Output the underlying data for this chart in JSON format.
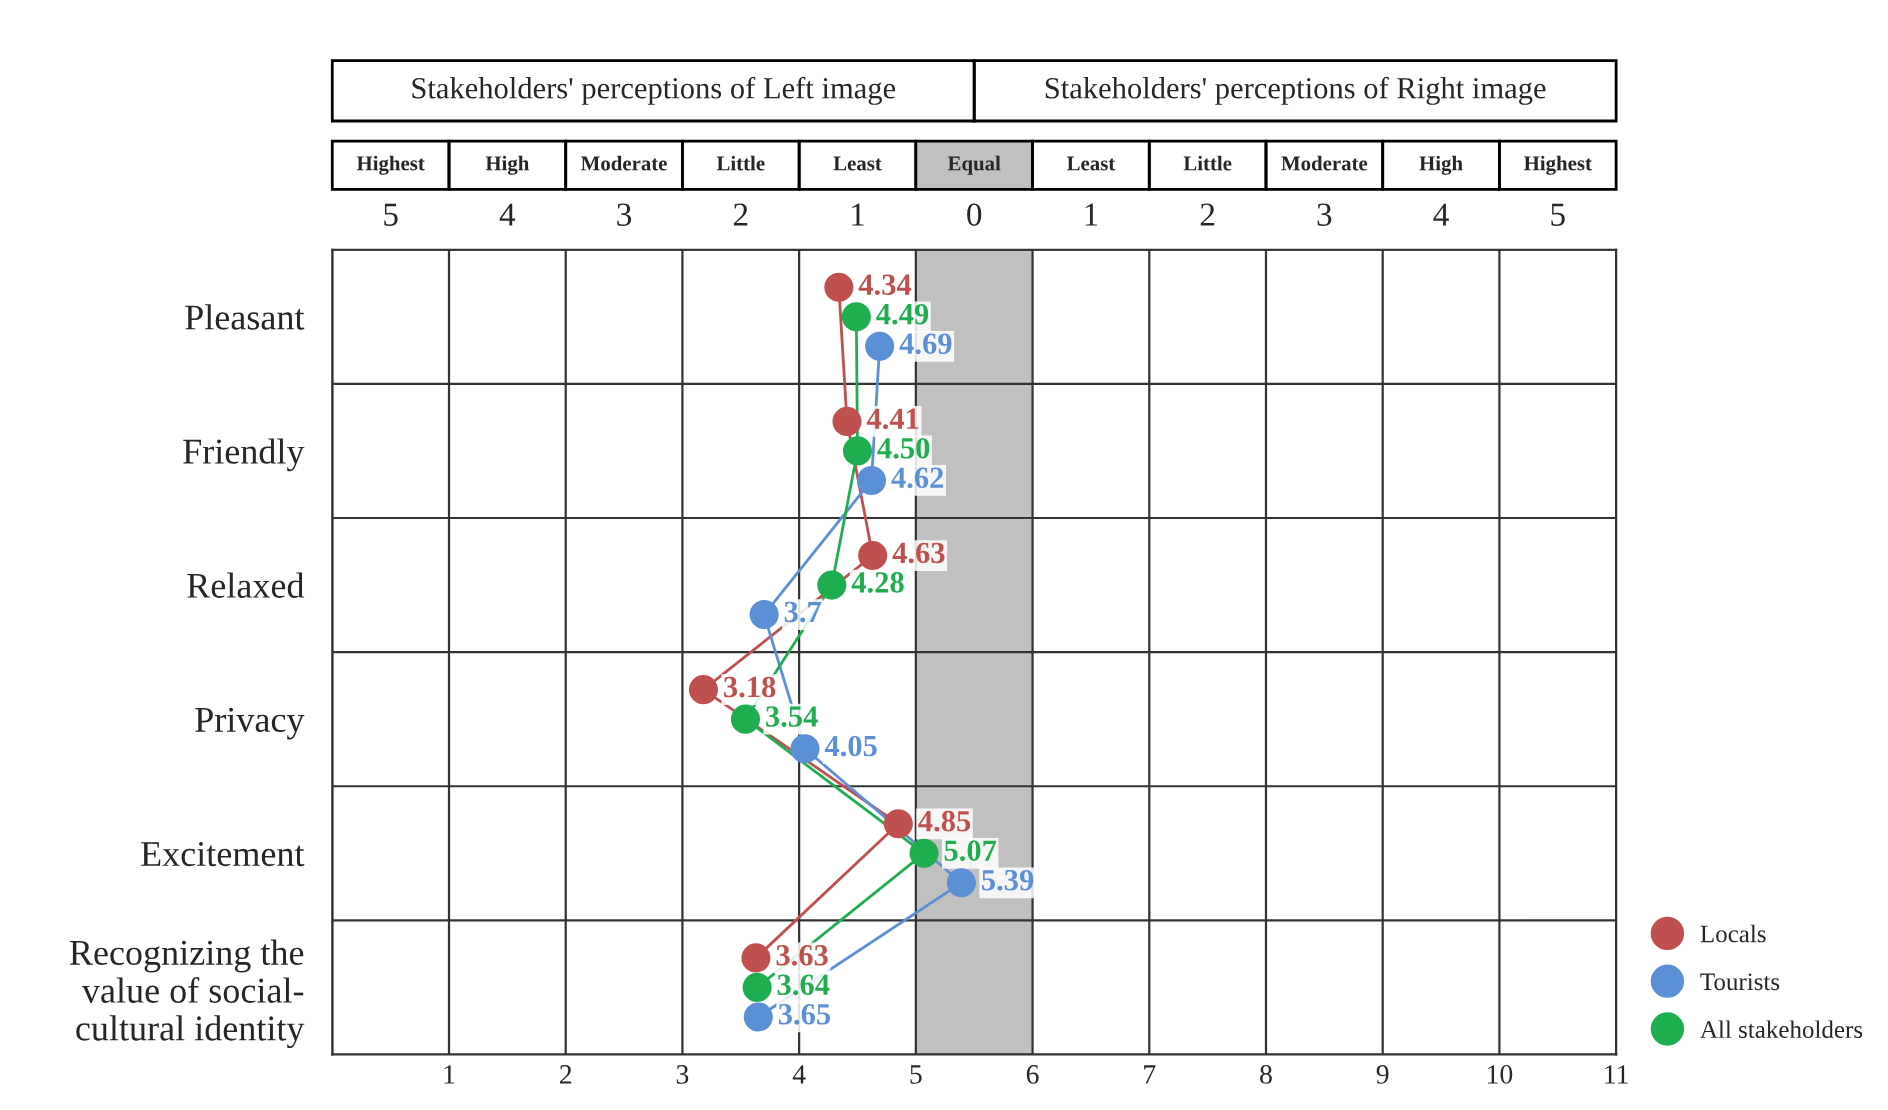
{
  "chart_data": {
    "type": "line",
    "orientation": "horizontal",
    "categories": [
      "Pleasant",
      "Friendly",
      "Relaxed",
      "Privacy",
      "Excitement",
      "Recognizing the\nvalue of social-\ncultural identity"
    ],
    "xlim": [
      0,
      11
    ],
    "xticks": [
      1,
      2,
      3,
      4,
      5,
      6,
      7,
      8,
      9,
      10,
      11
    ],
    "annotations": [
      "Stakeholders' perceptions of Left image",
      "Stakeholders' perceptions of Right image",
      "Highest",
      "High",
      "Moderate",
      "Little",
      "Least",
      "Equal",
      "Least",
      "Little",
      "Moderate",
      "High",
      "Highest",
      "5",
      "4",
      "3",
      "2",
      "1",
      "0",
      "1",
      "2",
      "3",
      "4",
      "5"
    ],
    "bands": [
      {
        "axis": "x",
        "from": 5,
        "to": 6,
        "color": "#c0c0c0"
      }
    ],
    "series": [
      {
        "name": "Locals",
        "color": "#c0504d",
        "values": [
          4.34,
          4.41,
          4.63,
          3.18,
          4.85,
          3.63
        ],
        "value_labels": [
          "4.34",
          "4.41",
          "4.63",
          "3.18",
          "4.85",
          "3.63"
        ]
      },
      {
        "name": "Tourists",
        "color": "#5b8fd6",
        "values": [
          4.69,
          4.62,
          3.7,
          4.05,
          5.39,
          3.65
        ],
        "value_labels": [
          "4.69",
          "4.62",
          "3.7",
          "4.05",
          "5.39",
          "3.65"
        ]
      },
      {
        "name": "All stakeholders",
        "color": "#1fae4f",
        "values": [
          4.49,
          4.5,
          4.28,
          3.54,
          5.07,
          3.64
        ],
        "value_labels": [
          "4.49",
          "4.50",
          "4.28",
          "3.54",
          "5.07",
          "3.64"
        ]
      }
    ],
    "marker": "circle",
    "legend": "bottom right",
    "grid": true
  }
}
